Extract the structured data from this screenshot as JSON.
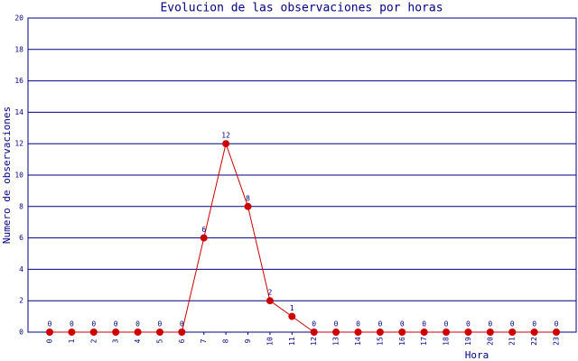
{
  "chart_data": {
    "type": "line",
    "title": "Evolucion de las observaciones por horas",
    "x_label": "Hora",
    "y_label": "Numero de observaciones",
    "categories": [
      "0",
      "1",
      "2",
      "3",
      "4",
      "5",
      "6",
      "7",
      "8",
      "9",
      "10",
      "11",
      "12",
      "13",
      "14",
      "15",
      "16",
      "17",
      "18",
      "19",
      "20",
      "21",
      "22",
      "23"
    ],
    "series": [
      {
        "name": "Observaciones",
        "color": "#cc0000",
        "values": [
          0,
          0,
          0,
          0,
          0,
          0,
          0,
          6,
          12,
          8,
          2,
          1,
          0,
          0,
          0,
          0,
          0,
          0,
          0,
          0,
          0,
          0,
          0,
          0
        ]
      }
    ],
    "ylim": [
      0,
      20
    ],
    "yticks": [
      0,
      2,
      4,
      6,
      8,
      10,
      12,
      14,
      16,
      18,
      20
    ],
    "grid": true
  }
}
